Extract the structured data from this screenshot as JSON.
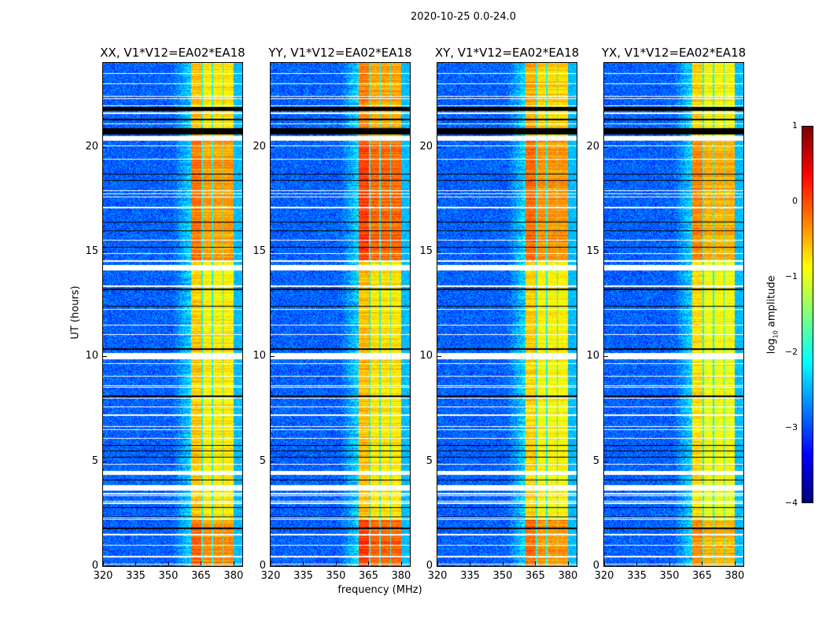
{
  "chart_data": {
    "type": "heatmap",
    "title": "2020-10-25 0.0-24.0",
    "xlabel": "frequency (MHz)",
    "ylabel": "UT (hours)",
    "xlim": [
      320,
      384
    ],
    "ylim": [
      0,
      24
    ],
    "xticks": [
      320,
      335,
      350,
      365,
      380
    ],
    "yticks": [
      0,
      5,
      10,
      15,
      20
    ],
    "colorbar": {
      "label_main": "log",
      "label_sub": "10",
      "label_rest": " amplitude",
      "range": [
        -4,
        1
      ],
      "ticks": [
        1,
        0,
        -1,
        -2,
        -3,
        -4
      ],
      "tick_labels": [
        "1",
        "0",
        "−1",
        "−2",
        "−3",
        "−4"
      ],
      "colormap": "jet"
    },
    "background_level": -2.9,
    "band_MHz": [
      360.5,
      380
    ],
    "band_gaps_MHz": [
      365.5,
      370.2,
      375.2
    ],
    "ramp_MHz": [
      352,
      360.5
    ],
    "flagged_white_hours": [
      [
        23.47,
        23.53
      ],
      [
        22.97,
        23.03
      ],
      [
        22.37,
        22.43
      ],
      [
        22.27,
        22.33
      ],
      [
        21.92,
        21.98
      ],
      [
        21.57,
        21.63
      ],
      [
        21.07,
        21.13
      ],
      [
        20.3,
        20.5
      ],
      [
        20.02,
        20.08
      ],
      [
        19.37,
        19.43
      ],
      [
        17.87,
        17.93
      ],
      [
        17.72,
        17.78
      ],
      [
        17.57,
        17.63
      ],
      [
        17.07,
        17.13
      ],
      [
        15.52,
        15.58
      ],
      [
        14.87,
        14.93
      ],
      [
        14.52,
        14.58
      ],
      [
        14.1,
        14.35
      ],
      [
        13.32,
        13.38
      ],
      [
        12.22,
        12.28
      ],
      [
        11.47,
        11.53
      ],
      [
        11.02,
        11.08
      ],
      [
        9.85,
        10.15
      ],
      [
        9.62,
        9.68
      ],
      [
        9.02,
        9.08
      ],
      [
        8.57,
        8.63
      ],
      [
        8.52,
        8.56
      ],
      [
        7.97,
        8.03
      ],
      [
        7.57,
        7.63
      ],
      [
        7.17,
        7.23
      ],
      [
        6.62,
        6.68
      ],
      [
        6.47,
        6.53
      ],
      [
        6.07,
        6.13
      ],
      [
        4.82,
        4.88
      ],
      [
        4.35,
        4.55
      ],
      [
        3.6,
        3.85
      ],
      [
        3.42,
        3.48
      ],
      [
        3.32,
        3.38
      ],
      [
        3.07,
        3.13
      ],
      [
        2.97,
        3.03
      ],
      [
        2.27,
        2.33
      ],
      [
        2.22,
        2.26
      ],
      [
        1.47,
        1.53
      ],
      [
        0.97,
        1.03
      ],
      [
        0.42,
        0.48
      ],
      [
        0.07,
        0.13
      ]
    ],
    "flagged_black_hours": [
      [
        21.7,
        21.9
      ],
      [
        21.27,
        21.33
      ],
      [
        20.6,
        20.9
      ],
      [
        18.67,
        18.73
      ],
      [
        18.37,
        18.43
      ],
      [
        16.37,
        16.43
      ],
      [
        15.97,
        16.03
      ],
      [
        15.17,
        15.23
      ],
      [
        13.17,
        13.23
      ],
      [
        12.37,
        12.43
      ],
      [
        10.3,
        10.4
      ],
      [
        8.07,
        8.13
      ],
      [
        5.72,
        5.78
      ],
      [
        5.47,
        5.53
      ],
      [
        5.17,
        5.23
      ],
      [
        4.07,
        4.13
      ],
      [
        2.77,
        2.83
      ],
      [
        2.32,
        2.38
      ],
      [
        1.77,
        1.83
      ]
    ],
    "panels": [
      {
        "title": "XX, V1*V12=EA02*EA18",
        "band_levels": [
          [
            0,
            2.2,
            -0.35
          ],
          [
            2.2,
            14.5,
            -0.8
          ],
          [
            14.5,
            20.3,
            -0.4
          ],
          [
            20.3,
            24,
            -0.75
          ]
        ]
      },
      {
        "title": "YY, V1*V12=EA02*EA18",
        "band_levels": [
          [
            0,
            2.2,
            -0.1
          ],
          [
            2.2,
            14.5,
            -0.75
          ],
          [
            14.5,
            20.3,
            -0.15
          ],
          [
            20.3,
            24,
            -0.45
          ]
        ]
      },
      {
        "title": "XY, V1*V12=EA02*EA18",
        "band_levels": [
          [
            0,
            2.2,
            -0.35
          ],
          [
            2.2,
            14.5,
            -0.85
          ],
          [
            14.5,
            20.3,
            -0.35
          ],
          [
            20.3,
            24,
            -0.7
          ]
        ]
      },
      {
        "title": "YX, V1*V12=EA02*EA18",
        "band_levels": [
          [
            0,
            2.2,
            -0.5
          ],
          [
            2.2,
            14.5,
            -0.9
          ],
          [
            14.5,
            20.3,
            -0.5
          ],
          [
            20.3,
            24,
            -0.85
          ]
        ]
      }
    ]
  }
}
